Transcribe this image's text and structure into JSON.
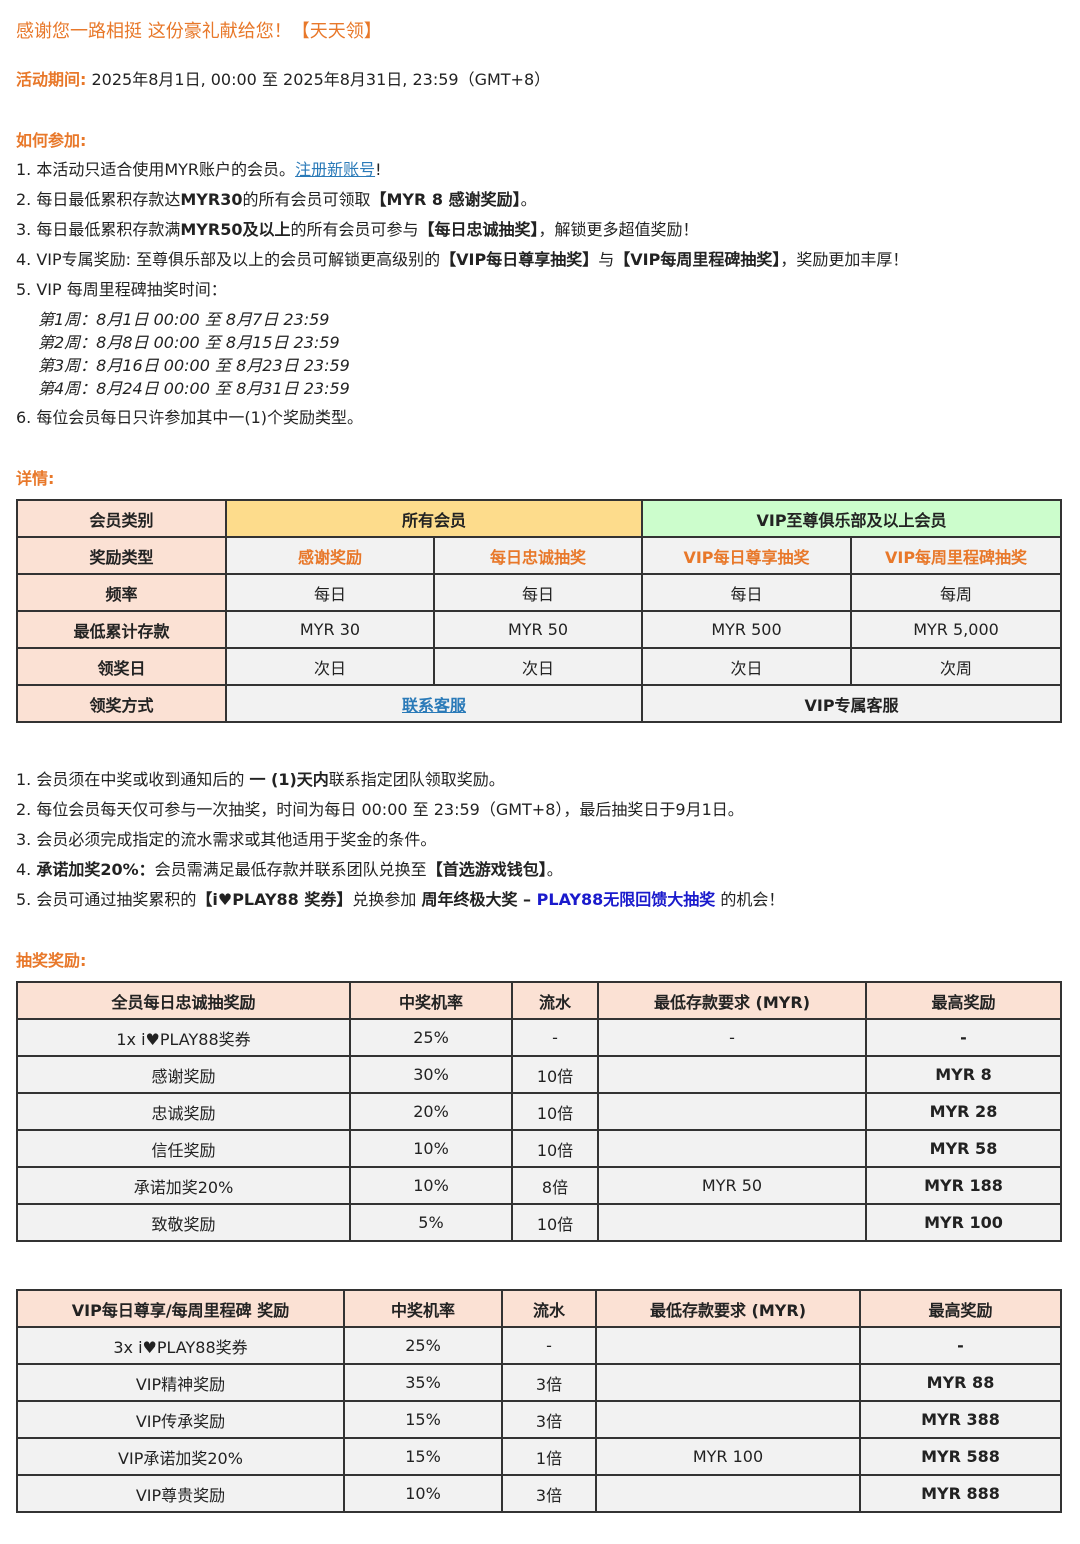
{
  "title": "感谢您一路相挺 这份豪礼献给您！【天天领】",
  "period": {
    "label": "活动期间:",
    "value": " 2025年8月1日, 00:00 至 2025年8月31日, 23:59（GMT+8）"
  },
  "how": {
    "heading": "如何参加:",
    "item1": {
      "text": "1. 本活动只适合使用MYR账户的会员。",
      "link": "注册新账号",
      "end": "!"
    },
    "item2": {
      "a": "2. 每日最低累积存款达",
      "b": "MYR30",
      "c": "的所有会员可领取",
      "d": "【MYR 8 感谢奖励】",
      "e": "。"
    },
    "item3": {
      "a": "3. 每日最低累积存款满",
      "b": "MYR50及以上",
      "c": "的所有会员可参与",
      "d": "【每日忠诚抽奖】",
      "e": "，解锁更多超值奖励！"
    },
    "item4": {
      "a": "4. VIP专属奖励: 至尊俱乐部及以上的会员可解锁更高级别的",
      "b": "【VIP每日尊享抽奖】",
      "c": "与",
      "d": "【VIP每周里程碑抽奖】",
      "e": "，奖励更加丰厚！"
    },
    "item5": "5. VIP 每周里程碑抽奖时间：",
    "weeks": [
      "第1周：8月1日 00:00 至 8月7日 23:59",
      "第2周：8月8日 00:00 至 8月15日 23:59",
      "第3周：8月16日 00:00 至 8月23日 23:59",
      "第4周：8月24日 00:00 至 8月31日 23:59"
    ],
    "item6": "6. 每位会员每日只许参加其中一(1)个奖励类型。"
  },
  "details": {
    "heading": "详情:",
    "rows": {
      "member": "会员类别",
      "all": "所有会员",
      "vip": "VIP至尊俱乐部及以上会员",
      "type": "奖励类型",
      "types": [
        "感谢奖励",
        "每日忠诚抽奖",
        "VIP每日尊享抽奖",
        "VIP每周里程碑抽奖"
      ],
      "freq": "频率",
      "freqs": [
        "每日",
        "每日",
        "每日",
        "每周"
      ],
      "min": "最低累计存款",
      "mins": [
        "MYR 30",
        "MYR 50",
        "MYR 500",
        "MYR 5,000"
      ],
      "day": "领奖日",
      "days": [
        "次日",
        "次日",
        "次日",
        "次周"
      ],
      "method": "领奖方式",
      "method_all": "联系客服",
      "method_vip": "VIP专属客服"
    }
  },
  "notes": {
    "n1": {
      "a": "1. 会员须在中奖或收到通知后的 ",
      "b": "一 (1)天内",
      "c": "联系指定团队领取奖励。"
    },
    "n2": "2. 每位会员每天仅可参与一次抽奖，时间为每日 00:00 至 23:59（GMT+8），最后抽奖日于9月1日。",
    "n3": "3. 会员必须完成指定的流水需求或其他适用于奖金的条件。",
    "n4": {
      "a": "4. ",
      "b": "承诺加奖20%：",
      "c": "会员需满足最低存款并联系团队兑换至",
      "d": "【首选游戏钱包】",
      "e": "。"
    },
    "n5": {
      "a": "5. 会员可通过抽奖累积的",
      "b": "【i♥PLAY88 奖券】",
      "c": "兑换参加 ",
      "d": "周年终极大奖 – ",
      "e": "PLAY88无限回馈大抽奖",
      "f": " 的机会！"
    }
  },
  "prizes": {
    "heading": "抽奖奖励:",
    "daily": {
      "headers": [
        "全员每日忠诚抽奖励",
        "中奖机率",
        "流水",
        "最低存款要求 (MYR)",
        "最高奖励"
      ],
      "rows": [
        [
          "1x i♥PLAY88奖券",
          "25%",
          "-",
          "-",
          "-"
        ],
        [
          "感谢奖励",
          "30%",
          "10倍",
          "",
          "MYR 8"
        ],
        [
          "忠诚奖励",
          "20%",
          "10倍",
          "",
          "MYR 28"
        ],
        [
          "信任奖励",
          "10%",
          "10倍",
          "",
          "MYR 58"
        ],
        [
          "承诺加奖20%",
          "10%",
          "8倍",
          "MYR 50",
          "MYR 188"
        ],
        [
          "致敬奖励",
          "5%",
          "10倍",
          "",
          "MYR 100"
        ]
      ]
    },
    "vip": {
      "headers": [
        "VIP每日尊享/每周里程碑 奖励",
        "中奖机率",
        "流水",
        "最低存款要求 (MYR)",
        "最高奖励"
      ],
      "rows": [
        [
          "3x i♥PLAY88奖券",
          "25%",
          "-",
          "",
          "-"
        ],
        [
          "VIP精神奖励",
          "35%",
          "3倍",
          "",
          "MYR 88"
        ],
        [
          "VIP传承奖励",
          "15%",
          "3倍",
          "",
          "MYR 388"
        ],
        [
          "VIP承诺加奖20%",
          "15%",
          "1倍",
          "MYR 100",
          "MYR 588"
        ],
        [
          "VIP尊贵奖励",
          "10%",
          "3倍",
          "",
          "MYR 888"
        ]
      ]
    }
  },
  "colors": {
    "accent": "#e8782a",
    "header": "#fbe1d4",
    "all_members": "#fddc8c",
    "vip_members": "#ccfdcc",
    "link": "#2a7ab8",
    "highlight": "#1a1acc"
  }
}
